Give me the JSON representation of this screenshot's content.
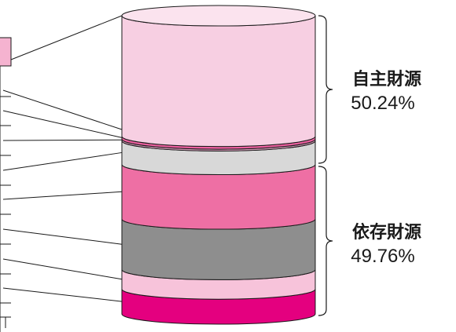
{
  "chart_data": {
    "type": "stacked-cylinder",
    "segments": [
      {
        "value": 40.43,
        "color": "#f7cfe2"
      },
      {
        "value": 0.91,
        "color": "#ea5f9e"
      },
      {
        "value": 0.6,
        "color": "#d69bb9"
      },
      {
        "value": 7.93,
        "color": "#d8d8d8"
      },
      {
        "value": 18.3,
        "color": "#ee6fa4"
      },
      {
        "value": 16.93,
        "color": "#8e8e8e"
      },
      {
        "value": 6.53,
        "color": "#f7c3da"
      },
      {
        "value": 8.37,
        "color": "#e4007f"
      }
    ],
    "groups": [
      {
        "name": "自主財源",
        "percent": "50.24%"
      },
      {
        "name": "依存財源",
        "percent": "49.76%"
      }
    ]
  }
}
